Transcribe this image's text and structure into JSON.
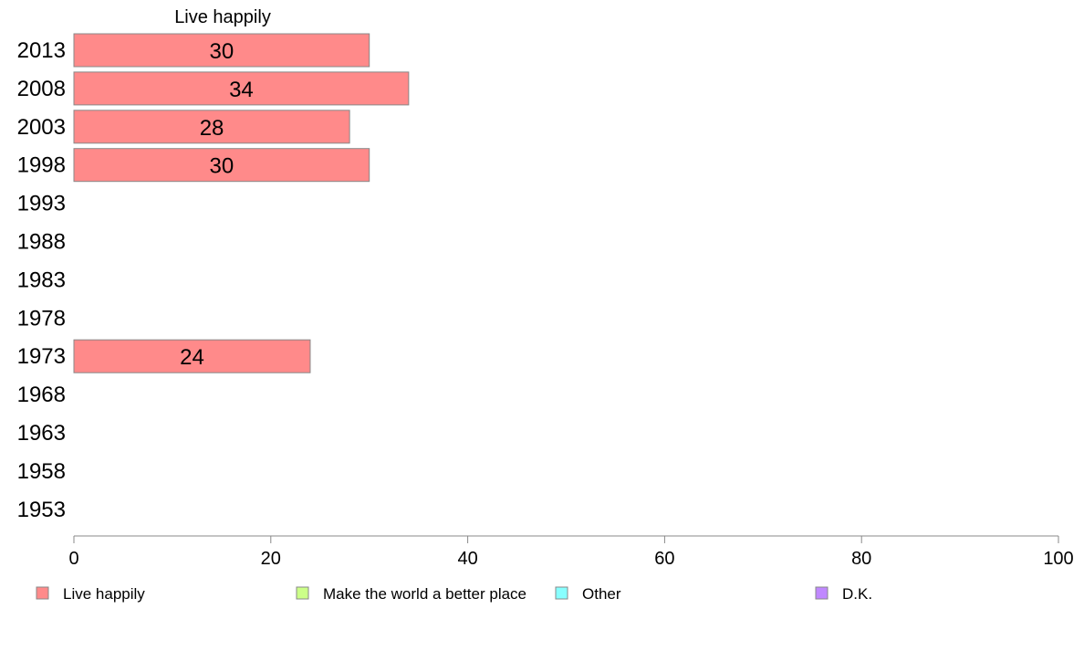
{
  "chart_data": {
    "type": "bar",
    "orientation": "horizontal",
    "title": "Live happily",
    "categories": [
      "2013",
      "2008",
      "2003",
      "1998",
      "1993",
      "1988",
      "1983",
      "1978",
      "1973",
      "1968",
      "1963",
      "1958",
      "1953"
    ],
    "series": [
      {
        "name": "Live happily",
        "color": "#ff8a8a",
        "values": [
          30,
          34,
          28,
          30,
          null,
          null,
          null,
          null,
          24,
          null,
          null,
          null,
          null
        ],
        "labels": [
          "30",
          "34",
          "28",
          "30",
          "",
          "",
          "",
          "",
          "24",
          "",
          "",
          "",
          ""
        ]
      }
    ],
    "xlim": [
      0,
      100
    ],
    "xticks": [
      0,
      20,
      40,
      60,
      80,
      100
    ],
    "xtick_labels": [
      "0",
      "20",
      "40",
      "60",
      "80",
      "100"
    ],
    "grid": false,
    "legend": {
      "placement": "bottom",
      "items": [
        {
          "label": "Live happily",
          "color": "#ff8a8a"
        },
        {
          "label": "Make the world a better place",
          "color": "#ccff88"
        },
        {
          "label": "Other",
          "color": "#88ffff"
        },
        {
          "label": "D.K.",
          "color": "#c088ff"
        }
      ]
    }
  }
}
